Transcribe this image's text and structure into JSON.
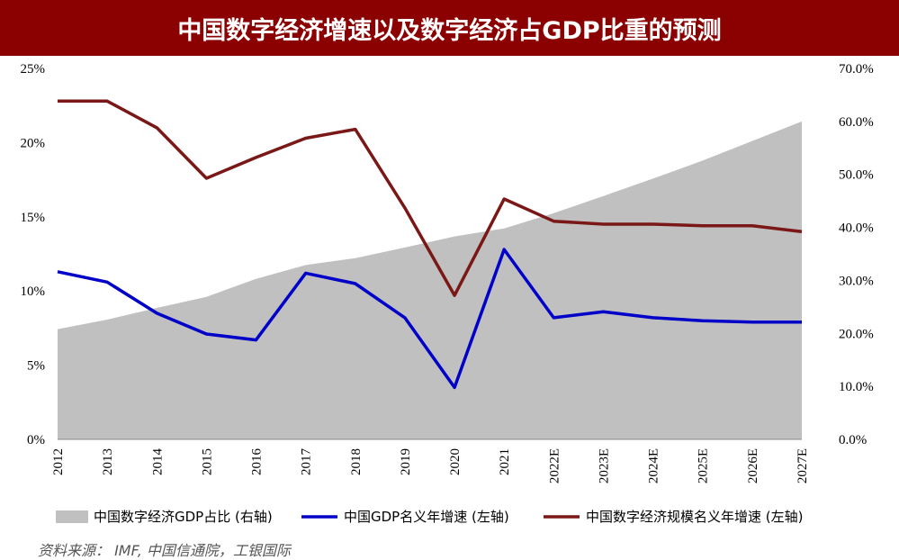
{
  "title": "中国数字经济增速以及数字经济占GDP比重的预测",
  "source": "资料来源：  IMF, 中国信通院，工银国际",
  "chart_data": {
    "type": "line",
    "categories": [
      "2012",
      "2013",
      "2014",
      "2015",
      "2016",
      "2017",
      "2018",
      "2019",
      "2020",
      "2021",
      "2022E",
      "2023E",
      "2024E",
      "2025E",
      "2026E",
      "2027E"
    ],
    "left_axis": {
      "range": [
        0,
        25
      ],
      "ticks": [
        "0%",
        "5%",
        "10%",
        "15%",
        "20%",
        "25%"
      ]
    },
    "right_axis": {
      "range": [
        0,
        70
      ],
      "ticks": [
        "0.0%",
        "10.0%",
        "20.0%",
        "30.0%",
        "40.0%",
        "50.0%",
        "60.0%",
        "70.0%"
      ]
    },
    "series": [
      {
        "name": "中国数字经济GDP占比 (右轴)",
        "kind": "area",
        "axis": "right",
        "color": "#c0c0c0",
        "values": [
          20.8,
          22.6,
          24.8,
          26.9,
          30.3,
          32.9,
          34.2,
          36.2,
          38.3,
          39.8,
          42.7,
          45.9,
          49.2,
          52.6,
          56.3,
          60.0
        ]
      },
      {
        "name": "中国GDP名义年增速 (左轴)",
        "kind": "line",
        "axis": "left",
        "color": "#0000c8",
        "values": [
          11.3,
          10.6,
          8.5,
          7.1,
          6.7,
          11.2,
          10.5,
          8.2,
          3.5,
          12.8,
          8.2,
          8.6,
          8.2,
          8.0,
          7.9,
          7.9
        ]
      },
      {
        "name": "中国数字经济规模名义年增速 (左轴)",
        "kind": "line",
        "axis": "left",
        "color": "#7a1717",
        "values": [
          22.8,
          22.8,
          21.0,
          17.6,
          19.0,
          20.3,
          20.9,
          15.6,
          9.7,
          16.2,
          14.7,
          14.5,
          14.5,
          14.4,
          14.4,
          14.0
        ]
      }
    ],
    "legend_position": "bottom",
    "grid": false
  }
}
